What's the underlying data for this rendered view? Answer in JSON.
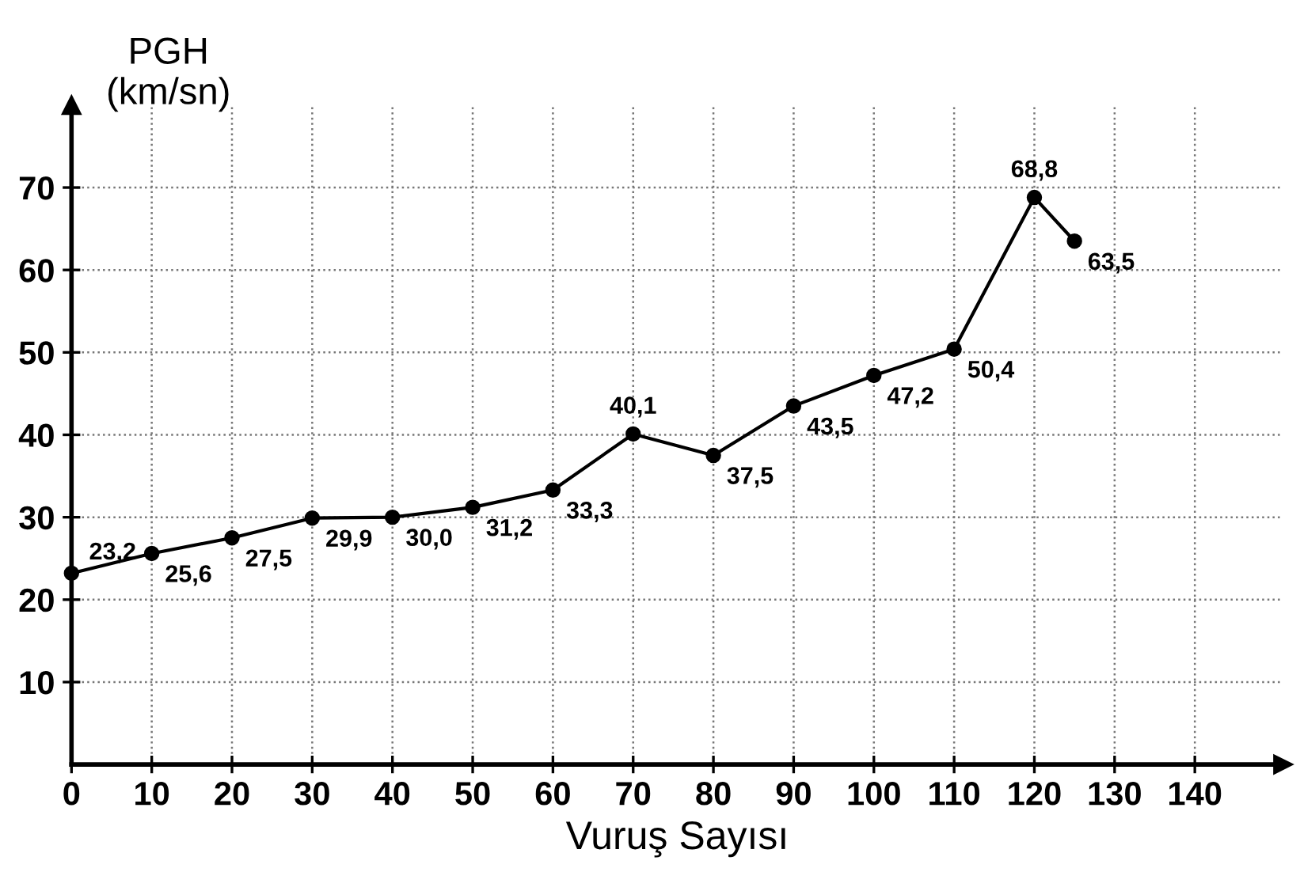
{
  "chart_data": {
    "type": "line",
    "xlabel": "Vuruş Sayısı",
    "ylabel": "PGH\n(km/sn)",
    "x": [
      0,
      10,
      20,
      30,
      40,
      50,
      60,
      70,
      80,
      90,
      100,
      110,
      120,
      125
    ],
    "series": [
      {
        "color": "#000000",
        "values": [
          23.2,
          25.6,
          27.5,
          29.9,
          30.0,
          31.2,
          33.3,
          40.1,
          37.5,
          43.5,
          47.2,
          50.4,
          68.8,
          63.5
        ],
        "value_labels": [
          "23,2",
          "25,6",
          "27,5",
          "29,9",
          "30,0",
          "31,2",
          "33,3",
          "40,1",
          "37,5",
          "43,5",
          "47,2",
          "50,4",
          "68,8",
          "63,5"
        ]
      }
    ],
    "xlim": [
      0,
      151
    ],
    "ylim": [
      0,
      80
    ],
    "xticks": [
      0,
      10,
      20,
      30,
      40,
      50,
      60,
      70,
      80,
      90,
      100,
      110,
      120,
      130,
      140
    ],
    "yticks": [
      10,
      20,
      30,
      40,
      50,
      60,
      70
    ],
    "grid": true,
    "marker": "circle",
    "line_style": "solid"
  }
}
